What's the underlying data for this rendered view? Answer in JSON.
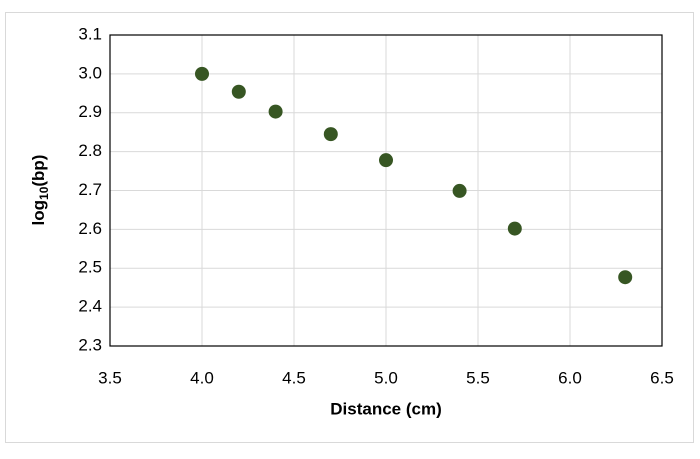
{
  "chart_data": {
    "type": "scatter",
    "xlabel": "Distance (cm)",
    "ylabel": [
      "log",
      "10",
      "(bp)"
    ],
    "x": [
      4.0,
      4.2,
      4.4,
      4.7,
      5.0,
      5.4,
      5.7,
      6.3
    ],
    "values": [
      3.0,
      2.954,
      2.903,
      2.845,
      2.778,
      2.699,
      2.602,
      2.477
    ],
    "color": "#375623",
    "xlim": [
      3.5,
      6.5
    ],
    "xticks": [
      3.5,
      {
        "value": 4,
        "label": "4.0"
      },
      4.5,
      {
        "value": 5,
        "label": "5.0"
      },
      5.5,
      {
        "value": 6,
        "label": "6.0"
      },
      6.5
    ],
    "ylim": [
      2.3,
      3.1
    ],
    "yticks": [
      2.3,
      2.4,
      2.5,
      2.6,
      2.7,
      2.8,
      2.9,
      {
        "value": 3,
        "label": "3.0"
      },
      3.1
    ],
    "grid": true
  }
}
